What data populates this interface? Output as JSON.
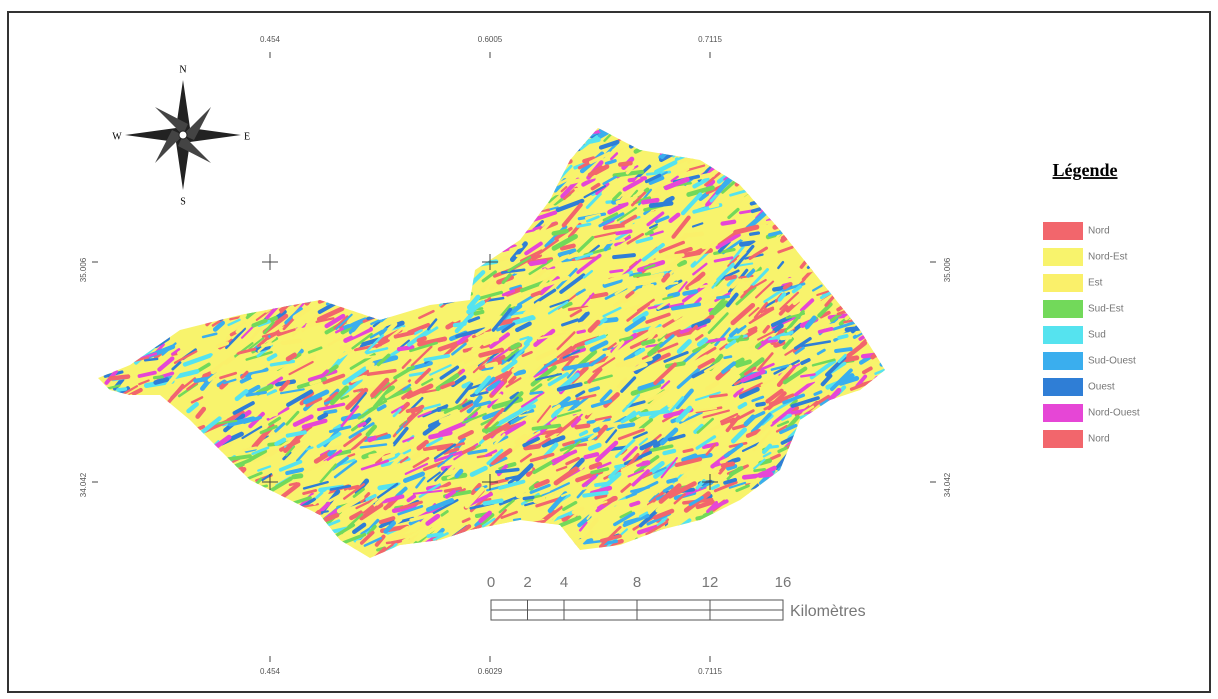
{
  "map": {
    "coordinates": {
      "top": [
        "0.454",
        "0.6005",
        "0.7115"
      ],
      "bottom": [
        "0.454",
        "0.6029",
        "0.7115"
      ],
      "left": [
        "35.006",
        "34.042"
      ],
      "right": [
        "35.006",
        "34.042"
      ]
    },
    "compass": {
      "north": "N",
      "south": "S",
      "east": "E",
      "west": "W"
    },
    "legend": {
      "title": "Légende",
      "items": [
        {
          "label": "Nord",
          "color": "#f2666c"
        },
        {
          "label": "Nord-Est",
          "color": "#f8f36c"
        },
        {
          "label": "Est",
          "color": "#faf06a"
        },
        {
          "label": "Sud-Est",
          "color": "#72d95a"
        },
        {
          "label": "Sud",
          "color": "#55e3ef"
        },
        {
          "label": "Sud-Ouest",
          "color": "#3aaeee"
        },
        {
          "label": "Ouest",
          "color": "#2f7ed6"
        },
        {
          "label": "Nord-Ouest",
          "color": "#e646d6"
        },
        {
          "label": "Nord",
          "color": "#f2666c"
        }
      ]
    },
    "scale_bar": {
      "ticks": [
        0,
        2,
        4,
        8,
        12,
        16
      ],
      "unit": "Kilomètres"
    }
  }
}
